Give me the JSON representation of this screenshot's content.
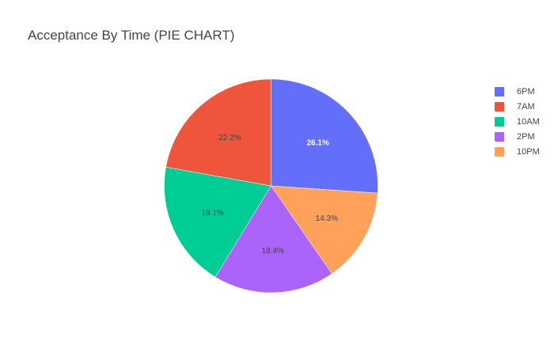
{
  "chart_data": {
    "type": "pie",
    "title": "Acceptance By Time (PIE CHART)",
    "slices": [
      {
        "label": "6PM",
        "value": 26.1,
        "text": "26.1%",
        "color": "#636efa",
        "text_color": "#ffffff"
      },
      {
        "label": "10PM",
        "value": 14.3,
        "text": "14.3%",
        "color": "#ffa15a",
        "text_color": "#444444"
      },
      {
        "label": "2PM",
        "value": 18.4,
        "text": "18.4%",
        "color": "#ab63fa",
        "text_color": "#444444"
      },
      {
        "label": "10AM",
        "value": 19.1,
        "text": "19.1%",
        "color": "#00cc96",
        "text_color": "#444444"
      },
      {
        "label": "7AM",
        "value": 22.2,
        "text": "22.2%",
        "color": "#ef553b",
        "text_color": "#444444"
      }
    ],
    "legend": {
      "position": "right",
      "order": [
        "6PM",
        "7AM",
        "10AM",
        "2PM",
        "10PM"
      ]
    }
  }
}
